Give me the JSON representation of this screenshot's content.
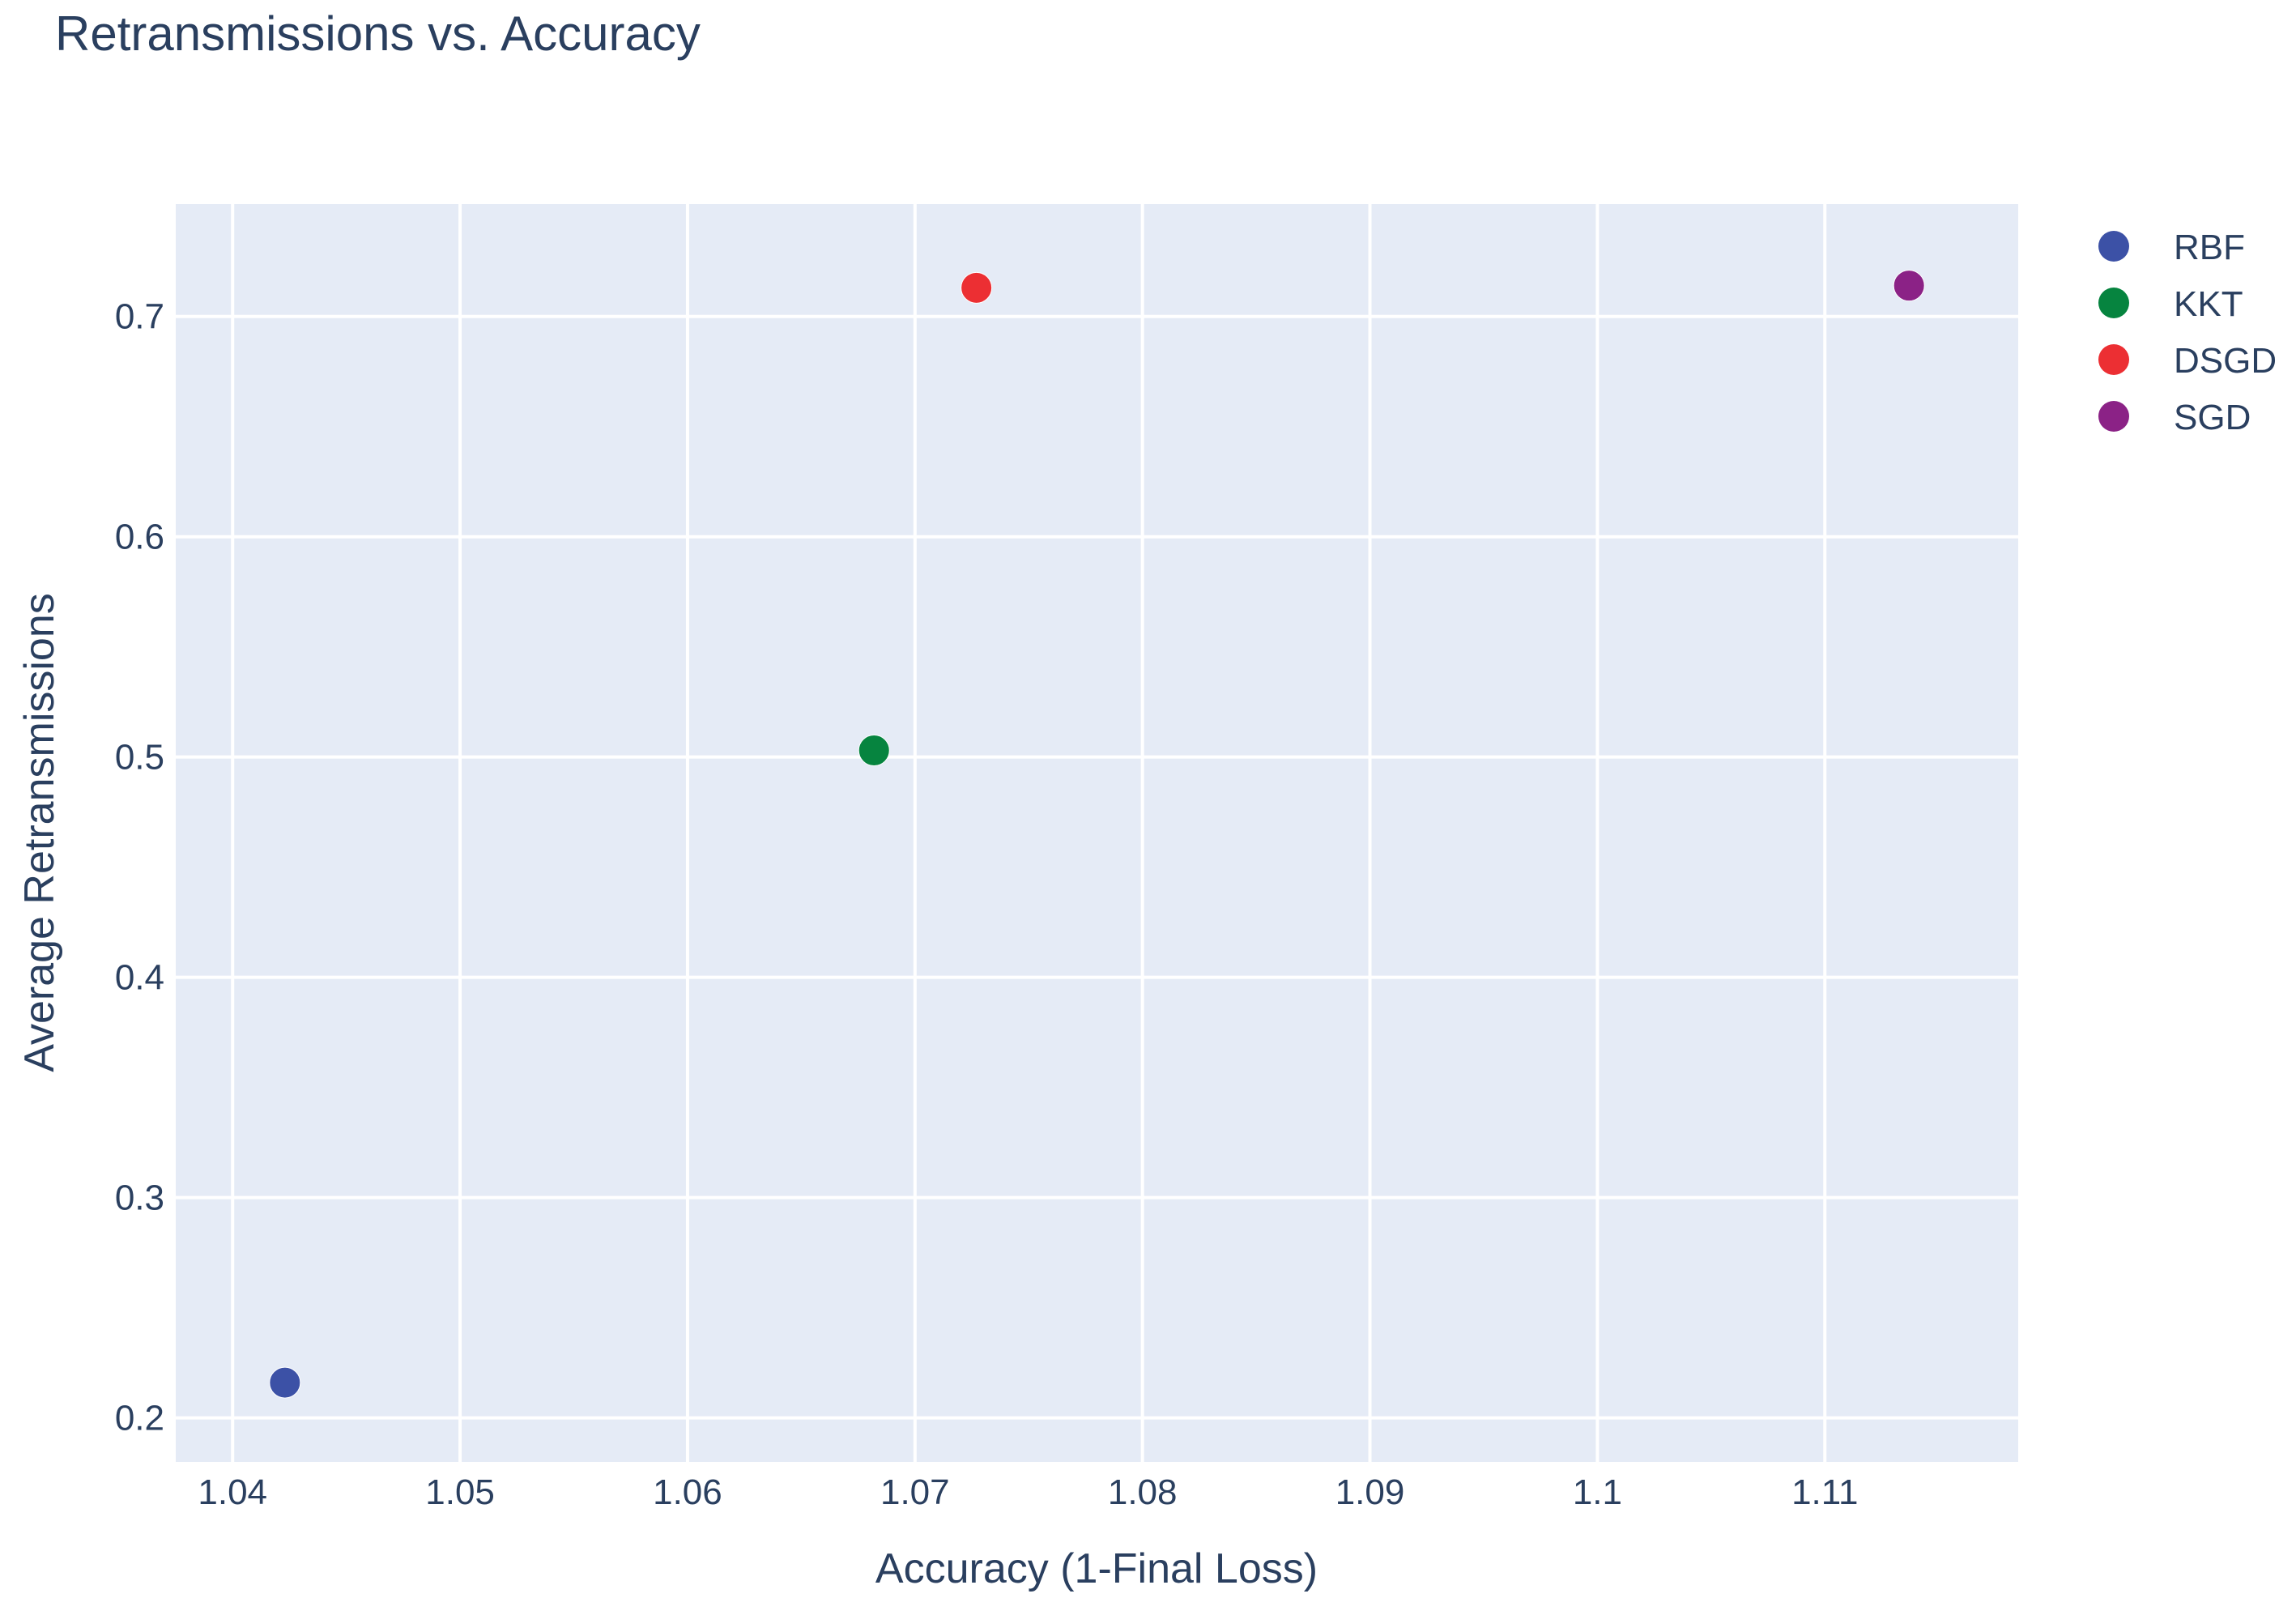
{
  "chart_data": {
    "type": "scatter",
    "title": "Retransmissions vs. Accuracy",
    "xlabel": "Accuracy (1-Final Loss)",
    "ylabel": "Average Retransmissions",
    "xlim": [
      1.0375,
      1.1185
    ],
    "ylim": [
      0.18,
      0.751
    ],
    "xticks": [
      1.04,
      1.05,
      1.06,
      1.07,
      1.08,
      1.09,
      1.1,
      1.11
    ],
    "xtick_labels": [
      "1.04",
      "1.05",
      "1.06",
      "1.07",
      "1.08",
      "1.09",
      "1.1",
      "1.11"
    ],
    "yticks": [
      0.2,
      0.3,
      0.4,
      0.5,
      0.6,
      0.7
    ],
    "ytick_labels": [
      "0.2",
      "0.3",
      "0.4",
      "0.5",
      "0.6",
      "0.7"
    ],
    "grid": true,
    "legend_position": "top-right",
    "series": [
      {
        "name": "RBF",
        "color": "#3c51a6",
        "points": [
          [
            1.0423,
            0.216
          ]
        ]
      },
      {
        "name": "KKT",
        "color": "#06843f",
        "points": [
          [
            1.0682,
            0.503
          ]
        ]
      },
      {
        "name": "DSGD",
        "color": "#ec2f33",
        "points": [
          [
            1.0727,
            0.713
          ]
        ]
      },
      {
        "name": "SGD",
        "color": "#8b2286",
        "points": [
          [
            1.1137,
            0.714
          ]
        ]
      }
    ],
    "colors": {
      "plot_background": "#e5ebf6",
      "grid": "#ffffff",
      "text": "#2a3f5f"
    }
  }
}
